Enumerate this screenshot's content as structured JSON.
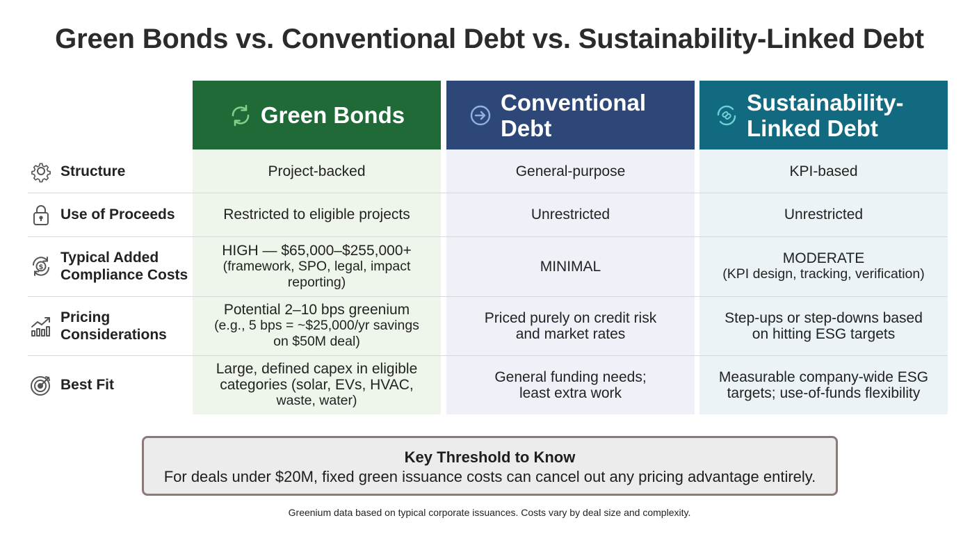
{
  "title": "Green Bonds vs. Conventional Debt vs. Sustainability-Linked Debt",
  "columns": [
    {
      "label_line1": "Green Bonds",
      "label_line2": "",
      "icon": "recycle-arrows-icon",
      "color": "#1f6a37"
    },
    {
      "label_line1": "Conventional",
      "label_line2": "Debt",
      "icon": "arrow-right-circle-icon",
      "color": "#2d4878"
    },
    {
      "label_line1": "Sustainability-",
      "label_line2": "Linked Debt",
      "icon": "link-cycle-icon",
      "color": "#116a80"
    }
  ],
  "rows": [
    {
      "label_line1": "Structure",
      "label_line2": "",
      "icon": "gear-icon",
      "cells": [
        {
          "line1": "Project-backed",
          "line2": "",
          "line3": ""
        },
        {
          "line1": "General-purpose",
          "line2": "",
          "line3": ""
        },
        {
          "line1": "KPI-based",
          "line2": "",
          "line3": ""
        }
      ]
    },
    {
      "label_line1": "Use of Proceeds",
      "label_line2": "",
      "icon": "lock-icon",
      "cells": [
        {
          "line1": "Restricted to eligible projects",
          "line2": "",
          "line3": ""
        },
        {
          "line1": "Unrestricted",
          "line2": "",
          "line3": ""
        },
        {
          "line1": "Unrestricted",
          "line2": "",
          "line3": ""
        }
      ]
    },
    {
      "label_line1": "Typical Added",
      "label_line2": "Compliance Costs",
      "icon": "dollar-cycle-icon",
      "cells": [
        {
          "line1": "HIGH — $65,000–$255,000+",
          "line2": "(framework, SPO, legal, impact",
          "line3": "reporting)"
        },
        {
          "line1": "MINIMAL",
          "line2": "",
          "line3": ""
        },
        {
          "line1": "MODERATE",
          "line2": "(KPI design, tracking, verification)",
          "line3": ""
        }
      ]
    },
    {
      "label_line1": "Pricing",
      "label_line2": "Considerations",
      "icon": "chart-trend-icon",
      "cells": [
        {
          "line1": "Potential 2–10 bps greenium",
          "line2": "(e.g., 5 bps = ~$25,000/yr savings",
          "line3": "on $50M deal)"
        },
        {
          "line1": "Priced purely on credit risk",
          "line2": "and market rates",
          "line3": ""
        },
        {
          "line1": "Step-ups or step-downs based",
          "line2": "on hitting ESG targets",
          "line3": ""
        }
      ]
    },
    {
      "label_line1": "Best Fit",
      "label_line2": "",
      "icon": "target-icon",
      "cells": [
        {
          "line1": "Large, defined capex in eligible",
          "line2": "categories (solar, EVs, HVAC,",
          "line3": "waste, water)"
        },
        {
          "line1": "General funding needs;",
          "line2": "least extra work",
          "line3": ""
        },
        {
          "line1": "Measurable company-wide ESG",
          "line2": "targets; use-of-funds flexibility",
          "line3": ""
        }
      ]
    }
  ],
  "callout": {
    "title": "Key Threshold to Know",
    "body": "For deals under $20M, fixed green issuance costs can cancel out any pricing advantage entirely."
  },
  "footnote": "Greenium data based on typical corporate issuances. Costs vary by deal size and complexity."
}
